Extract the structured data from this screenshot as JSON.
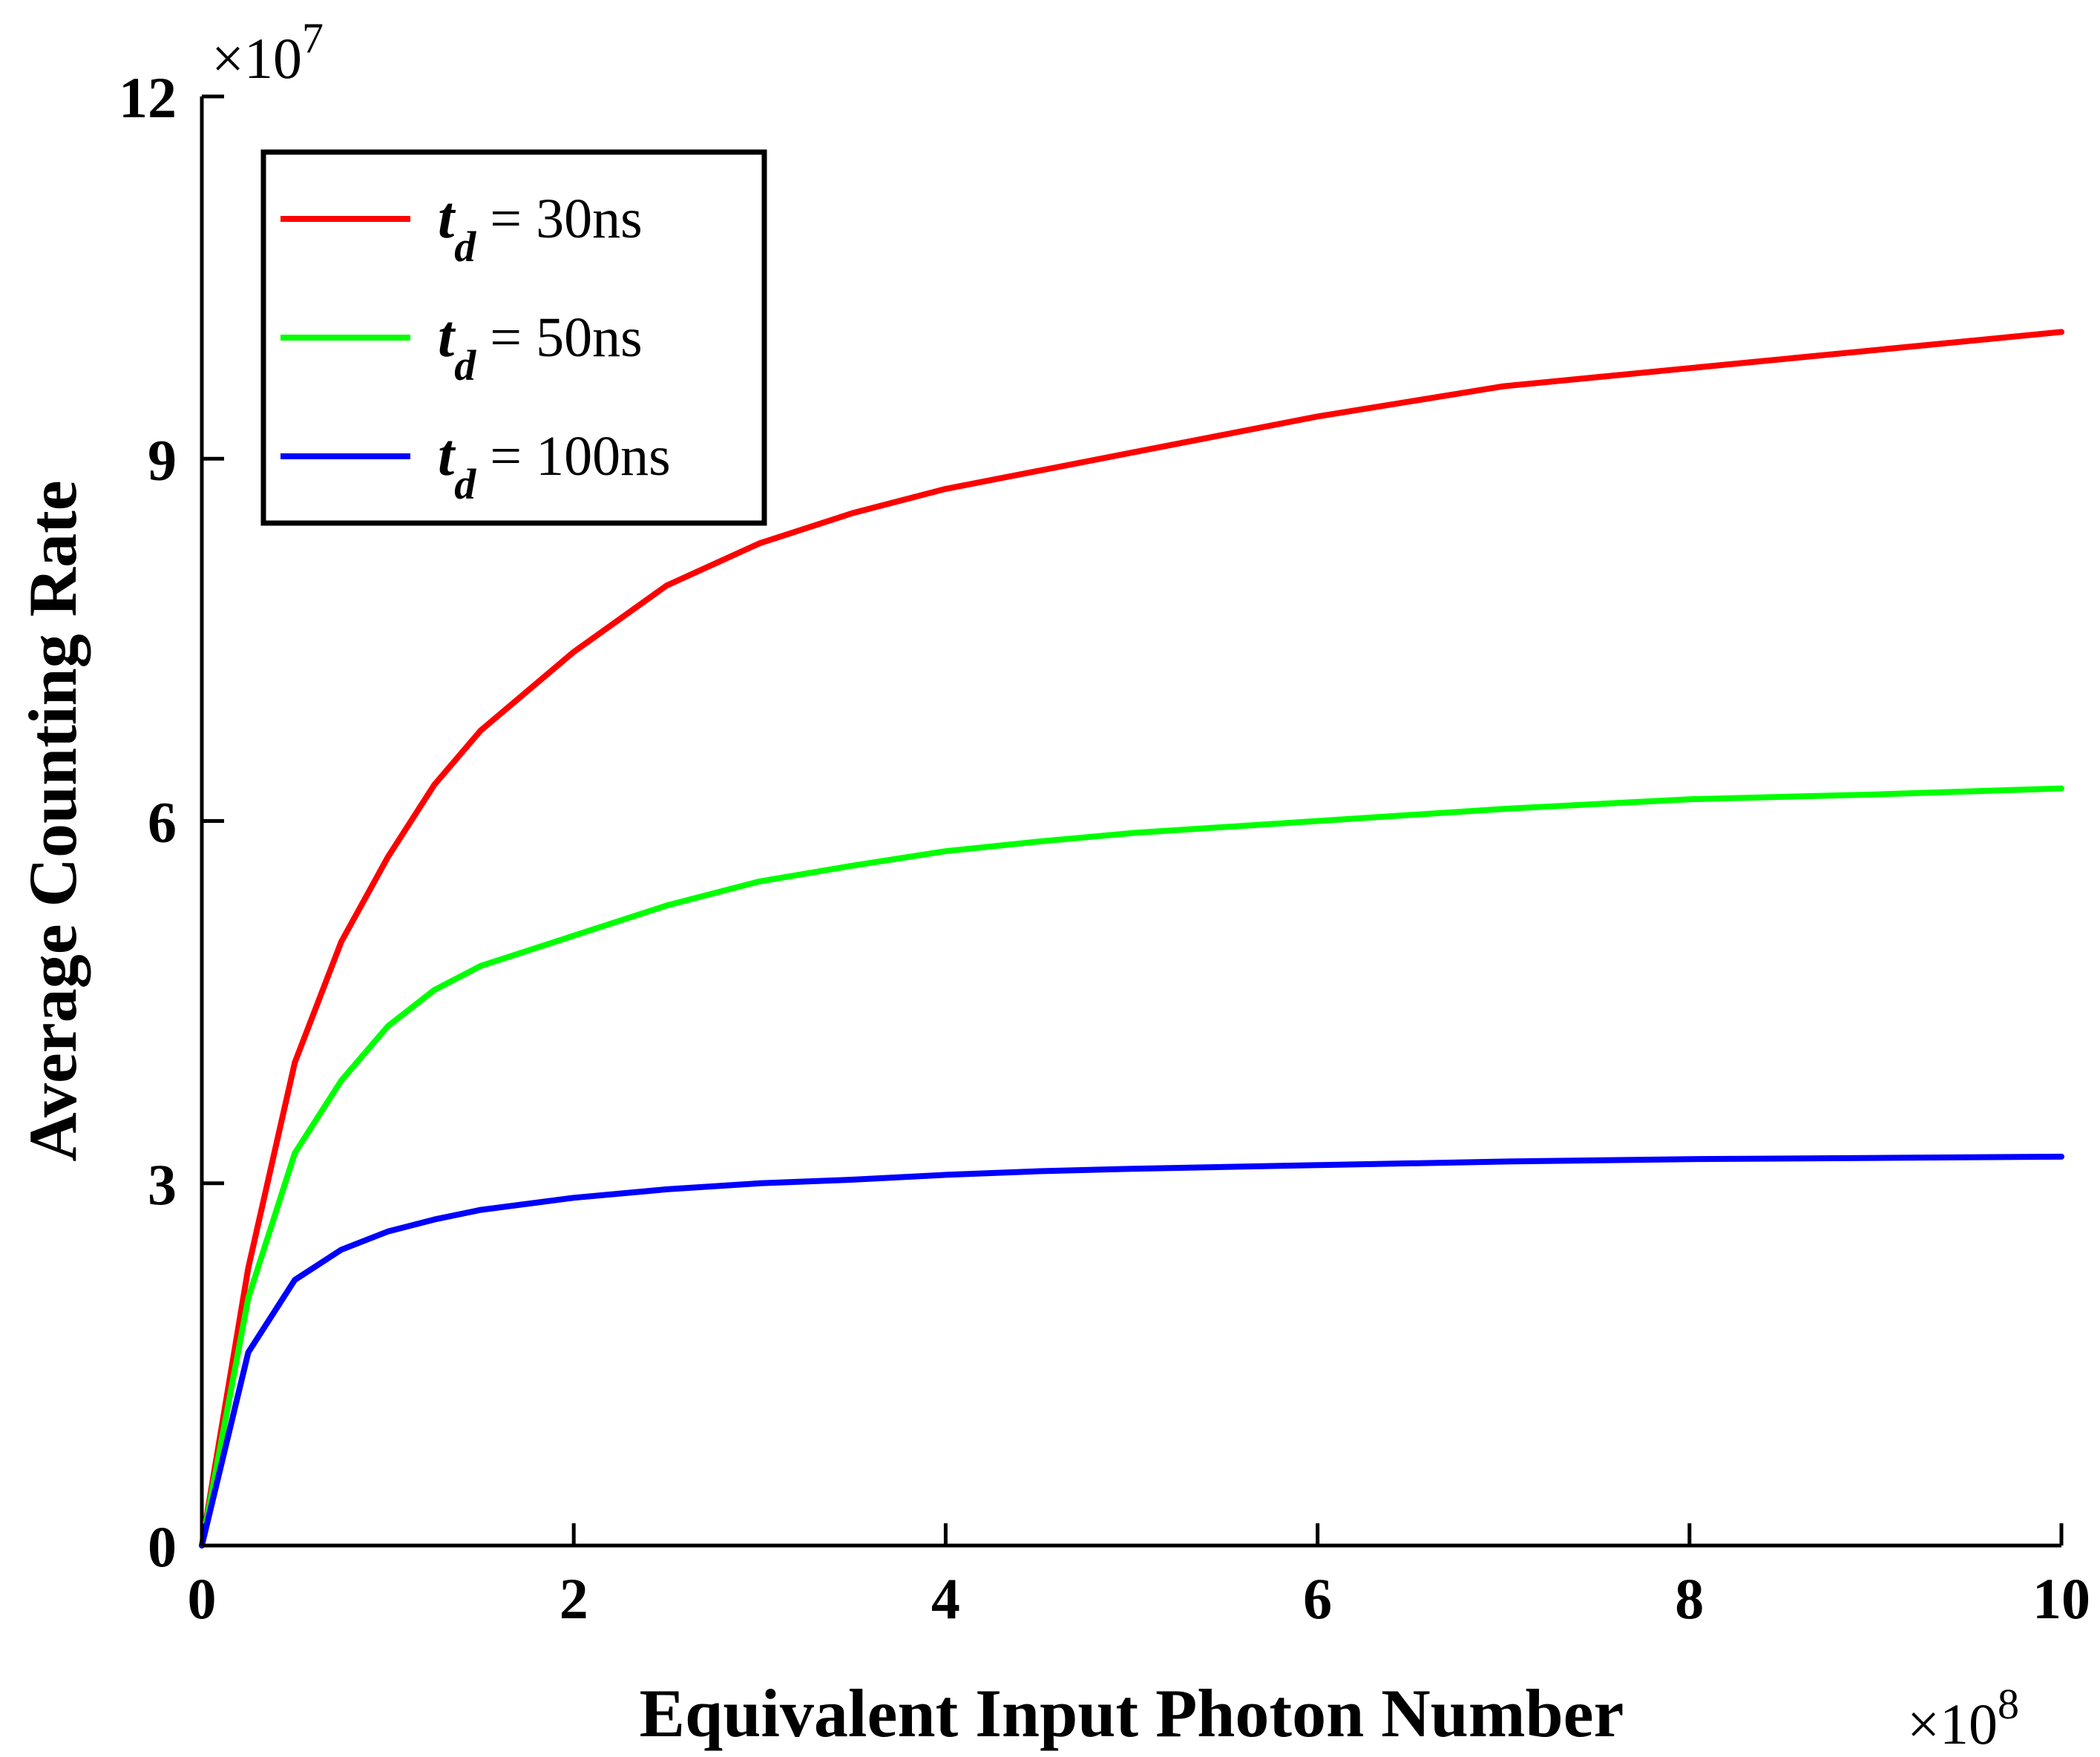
{
  "chart_data": {
    "type": "line",
    "title": "",
    "xlabel": "Equivalent Input Photon Number",
    "ylabel": "Average Counting Rate",
    "x_multiplier": {
      "base": "×10",
      "exponent": "8"
    },
    "y_multiplier": {
      "base": "×10",
      "exponent": "7"
    },
    "xlim": [
      0,
      10
    ],
    "ylim": [
      0,
      12
    ],
    "xticks": [
      "0",
      "2",
      "4",
      "6",
      "8",
      "10"
    ],
    "yticks": [
      "0",
      "3",
      "6",
      "9",
      "12"
    ],
    "grid": false,
    "legend_position": "top-left",
    "x": [
      0,
      0.25,
      0.5,
      0.75,
      1,
      1.25,
      1.5,
      2,
      2.5,
      3,
      3.5,
      4,
      4.5,
      5,
      6,
      7,
      8,
      9,
      10
    ],
    "series": [
      {
        "name": "t_d = 30ns",
        "legend_var": "t",
        "legend_sub": "d",
        "legend_text": " = 30ns",
        "color": "#ff0000",
        "values": [
          0,
          2.3,
          4.0,
          5.0,
          5.7,
          6.3,
          6.75,
          7.4,
          7.95,
          8.3,
          8.55,
          8.75,
          8.9,
          9.05,
          9.35,
          9.6,
          9.75,
          9.9,
          10.05
        ]
      },
      {
        "name": "t_d = 50ns",
        "legend_var": "t",
        "legend_sub": "d",
        "legend_text": " = 50ns",
        "color": "#00ff00",
        "values": [
          0,
          2.05,
          3.25,
          3.85,
          4.3,
          4.6,
          4.8,
          5.05,
          5.3,
          5.5,
          5.63,
          5.75,
          5.83,
          5.9,
          6.0,
          6.1,
          6.18,
          6.22,
          6.27
        ]
      },
      {
        "name": "t_d = 100ns",
        "legend_var": "t",
        "legend_sub": "d",
        "legend_text": " = 100ns",
        "color": "#0000ff",
        "values": [
          0,
          1.6,
          2.2,
          2.45,
          2.6,
          2.7,
          2.78,
          2.88,
          2.95,
          3.0,
          3.03,
          3.07,
          3.1,
          3.12,
          3.15,
          3.18,
          3.2,
          3.21,
          3.22
        ]
      }
    ]
  }
}
